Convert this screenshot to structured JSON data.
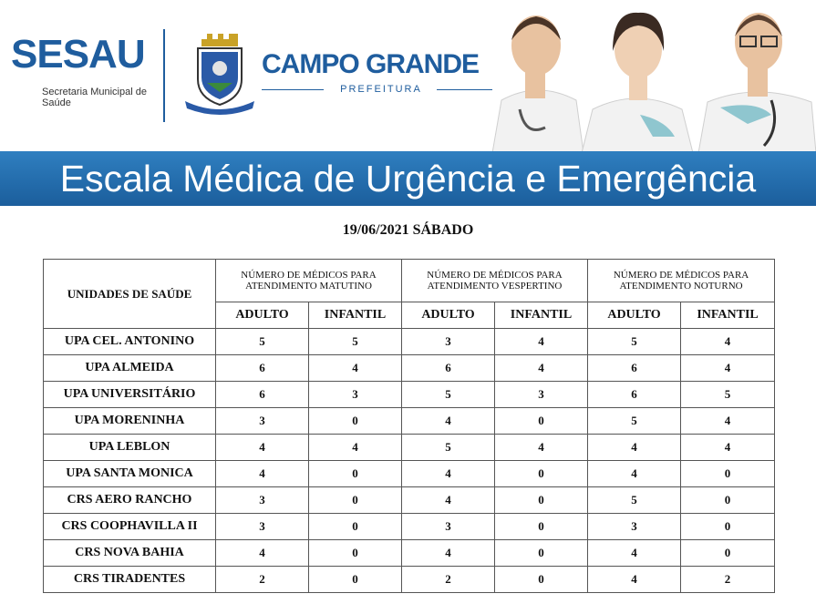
{
  "header": {
    "sesau": "SESAU",
    "sesau_subtitle": "Secretaria Municipal de Saúde",
    "city": "CAMPO GRANDE",
    "city_subtitle": "PREFEITURA",
    "banner_title": "Escala Médica de Urgência e Emergência",
    "colors": {
      "brand_blue": "#1f5d9e",
      "band_blue": "#2f7fc0"
    }
  },
  "date": "19/06/2021 SÁBADO",
  "table": {
    "unit_header": "UNIDADES DE SAÚDE",
    "groups": [
      "NÚMERO DE MÉDICOS PARA ATENDIMENTO MATUTINO",
      "NÚMERO DE MÉDICOS PARA ATENDIMENTO VESPERTINO",
      "NÚMERO DE MÉDICOS PARA ATENDIMENTO NOTURNO"
    ],
    "sub": [
      "ADULTO",
      "INFANTIL",
      "ADULTO",
      "INFANTIL",
      "ADULTO",
      "INFANTIL"
    ],
    "rows": [
      {
        "name": "UPA CEL. ANTONINO",
        "v": [
          "5",
          "5",
          "3",
          "4",
          "5",
          "4"
        ]
      },
      {
        "name": "UPA ALMEIDA",
        "v": [
          "6",
          "4",
          "6",
          "4",
          "6",
          "4"
        ]
      },
      {
        "name": "UPA UNIVERSITÁRIO",
        "v": [
          "6",
          "3",
          "5",
          "3",
          "6",
          "5"
        ]
      },
      {
        "name": "UPA MORENINHA",
        "v": [
          "3",
          "0",
          "4",
          "0",
          "5",
          "4"
        ]
      },
      {
        "name": "UPA LEBLON",
        "v": [
          "4",
          "4",
          "5",
          "4",
          "4",
          "4"
        ]
      },
      {
        "name": "UPA SANTA MONICA",
        "v": [
          "4",
          "0",
          "4",
          "0",
          "4",
          "0"
        ]
      },
      {
        "name": "CRS AERO RANCHO",
        "v": [
          "3",
          "0",
          "4",
          "0",
          "5",
          "0"
        ]
      },
      {
        "name": "CRS COOPHAVILLA II",
        "v": [
          "3",
          "0",
          "3",
          "0",
          "3",
          "0"
        ]
      },
      {
        "name": "CRS NOVA BAHIA",
        "v": [
          "4",
          "0",
          "4",
          "0",
          "4",
          "0"
        ]
      },
      {
        "name": "CRS TIRADENTES",
        "v": [
          "2",
          "0",
          "2",
          "0",
          "4",
          "2"
        ]
      }
    ]
  }
}
